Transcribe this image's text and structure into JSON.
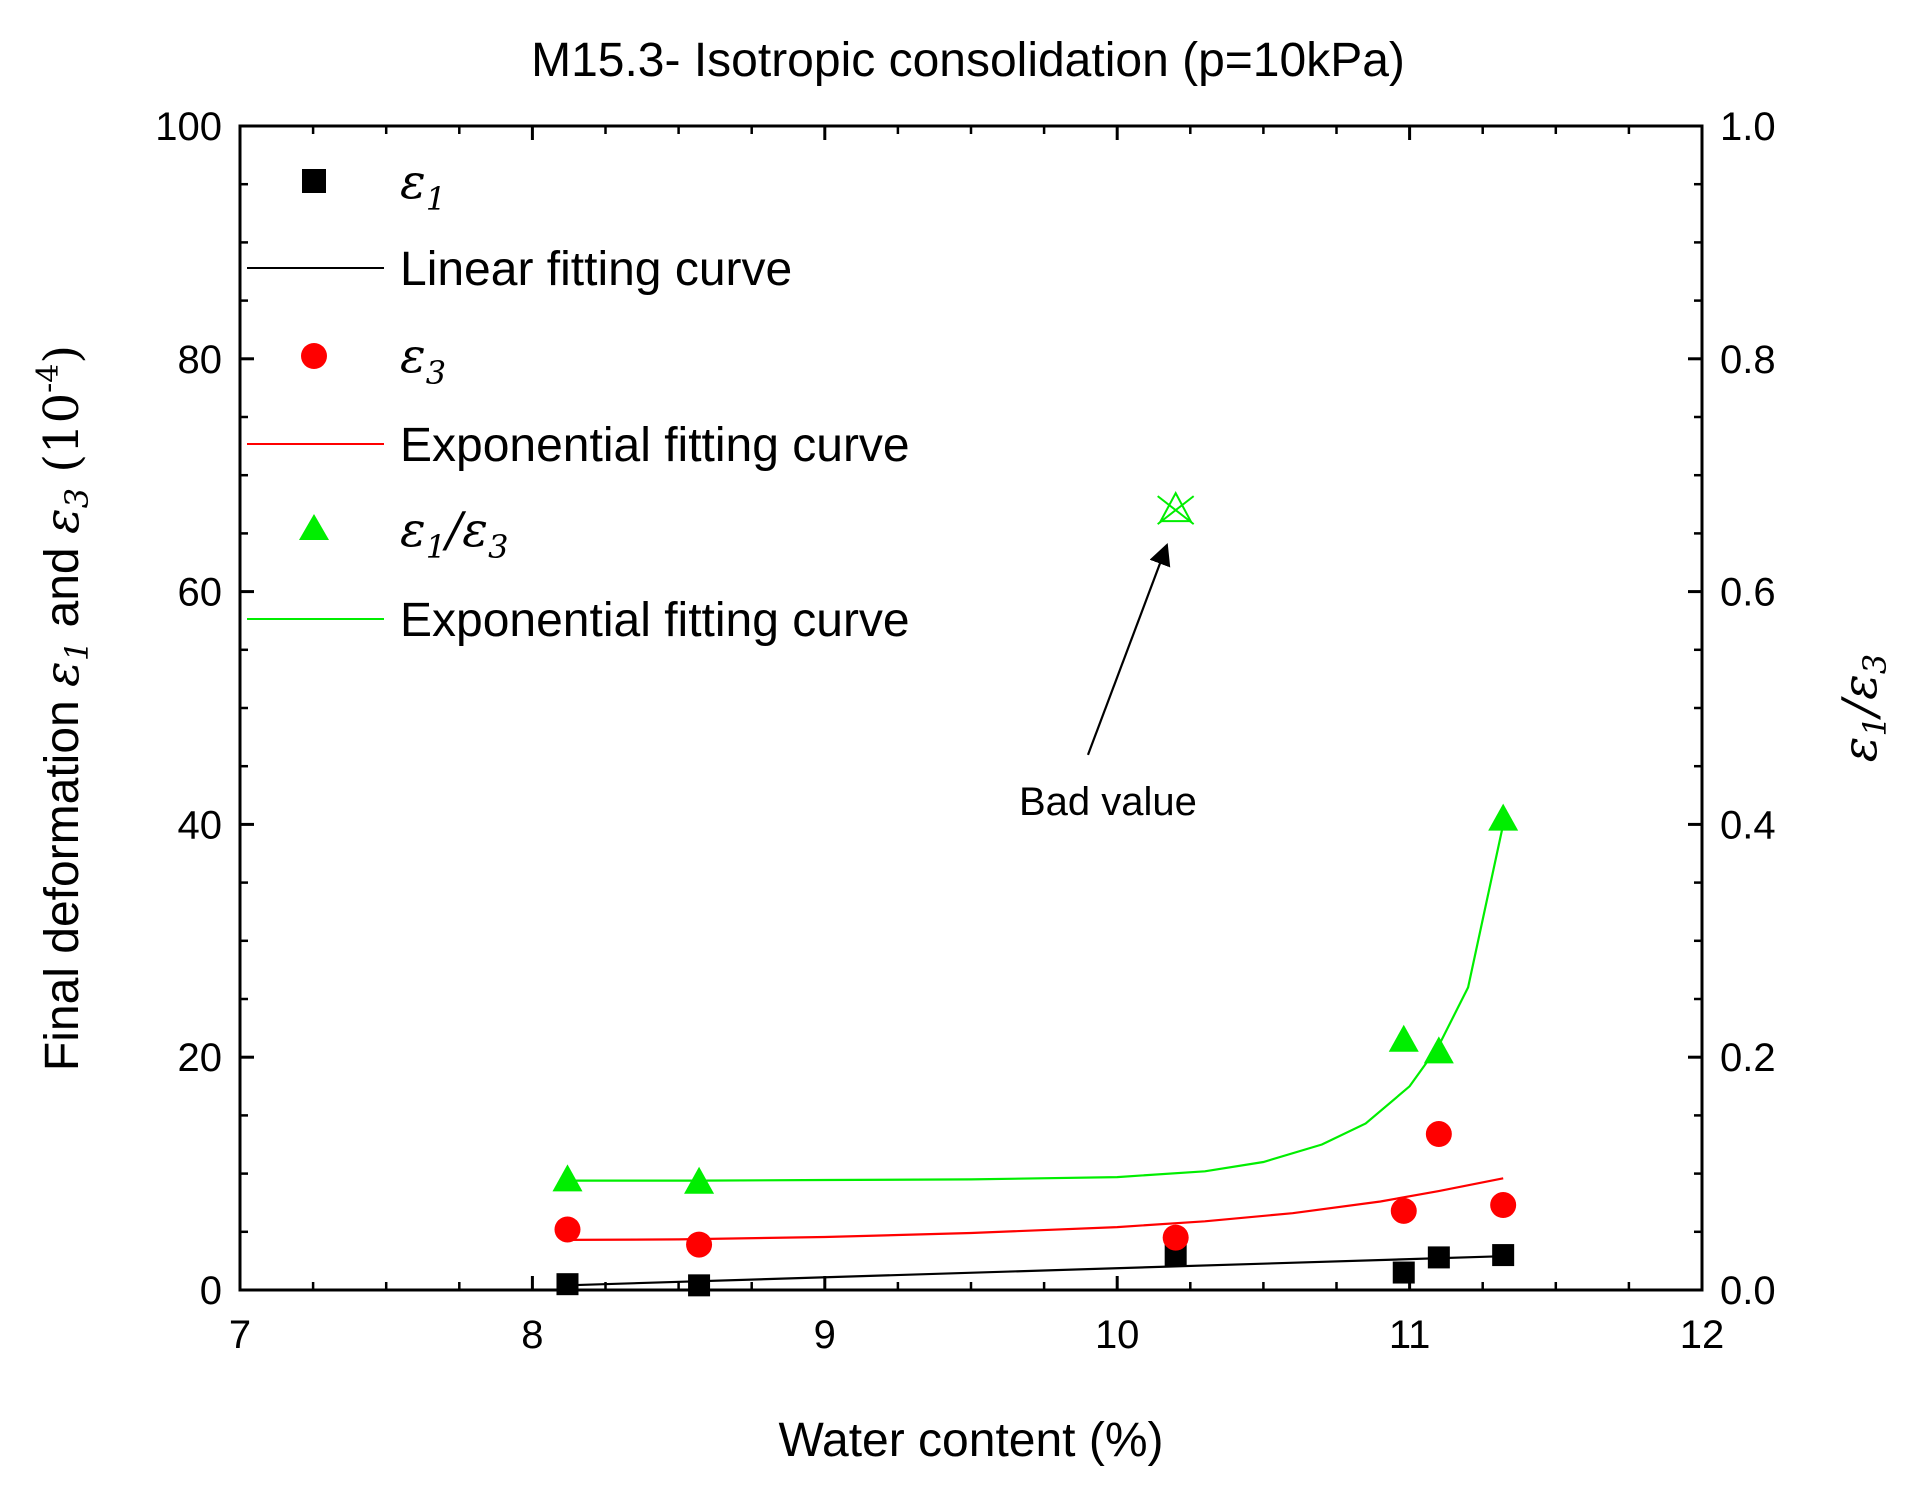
{
  "chart_data": {
    "type": "scatter",
    "title": "M15.3- Isotropic consolidation (p=10kPa)",
    "xlabel": "Water content (%)",
    "ylabel": {
      "prefix": "Final deformation ",
      "sym1": "ε",
      "sub1": "1",
      "mid": " and ",
      "sym3": "ε",
      "sub3": "3",
      "units": " (10",
      "exp": "-4",
      "close": ")"
    },
    "y2label": {
      "sym1": "ε",
      "sub1": "1",
      "slash": "/",
      "sym3": "ε",
      "sub3": "3"
    },
    "xlim": [
      7,
      12
    ],
    "ylim": [
      0,
      100
    ],
    "y2lim": [
      0,
      1.0
    ],
    "xticks": [
      "7",
      "8",
      "9",
      "10",
      "11",
      "12"
    ],
    "xtick_values": [
      7,
      8,
      9,
      10,
      11,
      12
    ],
    "yticks": [
      "0",
      "20",
      "40",
      "60",
      "80",
      "100"
    ],
    "ytick_values": [
      0,
      20,
      40,
      60,
      80,
      100
    ],
    "y2ticks": [
      "0.0",
      "0.2",
      "0.4",
      "0.6",
      "0.8",
      "1.0"
    ],
    "y2tick_values": [
      0,
      0.2,
      0.4,
      0.6,
      0.8,
      1.0
    ],
    "series": [
      {
        "name": "ε1",
        "axis": "left",
        "marker": "square",
        "color": "#000000",
        "x": [
          8.12,
          8.57,
          10.2,
          10.98,
          11.1,
          11.32
        ],
        "y": [
          0.5,
          0.4,
          3.0,
          1.5,
          2.8,
          3.0
        ]
      },
      {
        "name": "ε3",
        "axis": "left",
        "marker": "circle",
        "color": "#ff0000",
        "x": [
          8.12,
          8.57,
          10.2,
          10.98,
          11.1,
          11.32
        ],
        "y": [
          5.2,
          3.9,
          4.5,
          6.8,
          13.4,
          7.3
        ]
      },
      {
        "name": "ε1/ε3",
        "axis": "right",
        "marker": "triangle",
        "color": "#00ee00",
        "x": [
          8.12,
          8.57,
          10.98,
          11.1,
          11.32
        ],
        "y": [
          0.095,
          0.093,
          0.215,
          0.205,
          0.405
        ]
      }
    ],
    "fits": [
      {
        "name": "Linear fitting curve",
        "axis": "left",
        "color": "#000000",
        "x": [
          8.12,
          11.32
        ],
        "y": [
          0.4,
          2.9
        ]
      },
      {
        "name": "Exponential fitting curve",
        "axis": "left",
        "color": "#ff0000",
        "x": [
          8.12,
          8.5,
          9.0,
          9.5,
          10.0,
          10.3,
          10.6,
          10.9,
          11.1,
          11.32
        ],
        "y": [
          4.3,
          4.35,
          4.55,
          4.9,
          5.4,
          5.9,
          6.6,
          7.6,
          8.5,
          9.6
        ]
      },
      {
        "name": "Exponential fitting curve",
        "axis": "right",
        "color": "#00ee00",
        "x": [
          8.12,
          8.57,
          9.0,
          9.5,
          10.0,
          10.3,
          10.5,
          10.7,
          10.85,
          11.0,
          11.1,
          11.2,
          11.32
        ],
        "y": [
          0.094,
          0.094,
          0.0945,
          0.095,
          0.097,
          0.102,
          0.11,
          0.125,
          0.143,
          0.175,
          0.21,
          0.26,
          0.4
        ]
      }
    ],
    "outlier": {
      "x": 10.2,
      "y": 0.67,
      "axis": "right",
      "color": "#00ee00",
      "marker": "crossed-triangle"
    },
    "annotation": {
      "text": "Bad value",
      "x": 9.9,
      "y": 0.47,
      "arrow_to_x": 10.17,
      "arrow_to_y": 0.64
    },
    "legend": {
      "placement": "top-left",
      "entries": [
        {
          "kind": "marker",
          "marker": "square",
          "color": "#000000",
          "sym": "ε",
          "sub": "1"
        },
        {
          "kind": "line",
          "color": "#000000",
          "label": "Linear fitting curve"
        },
        {
          "kind": "marker",
          "marker": "circle",
          "color": "#ff0000",
          "sym": "ε",
          "sub": "3"
        },
        {
          "kind": "line",
          "color": "#ff0000",
          "label": "Exponential fitting curve"
        },
        {
          "kind": "marker",
          "marker": "triangle",
          "color": "#00ee00",
          "sym": "ε",
          "sub": "1",
          "slash": "/",
          "sym2": "ε",
          "sub2": "3"
        },
        {
          "kind": "line",
          "color": "#00ee00",
          "label": "Exponential fitting curve"
        }
      ]
    }
  }
}
